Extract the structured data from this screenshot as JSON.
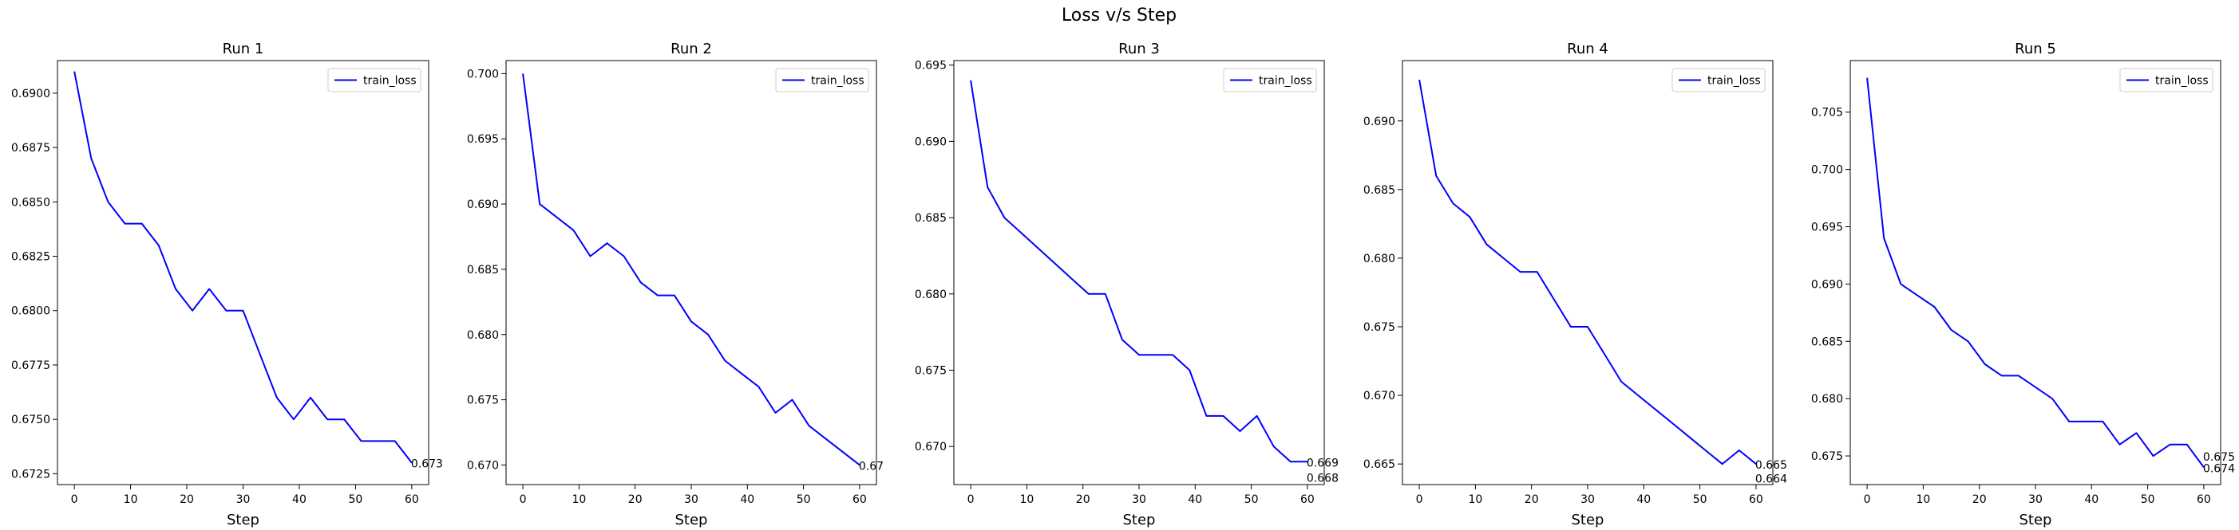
{
  "figure": {
    "title": "Loss v/s Step"
  },
  "chart_data": [
    {
      "type": "line",
      "title": "Run 1",
      "xlabel": "Step",
      "ylabel": "",
      "xlim": [
        -3,
        63
      ],
      "ylim": [
        0.672,
        0.6915
      ],
      "xticks": [
        0,
        10,
        20,
        30,
        40,
        50,
        60
      ],
      "yticks": [
        0.6725,
        0.675,
        0.6775,
        0.68,
        0.6825,
        0.685,
        0.6875,
        0.69
      ],
      "ytick_labels": [
        "0.6725",
        "0.6750",
        "0.6775",
        "0.6800",
        "0.6825",
        "0.6850",
        "0.6875",
        "0.6900"
      ],
      "legend": "top-right",
      "series": [
        {
          "name": "train_loss",
          "color": "#0000ff",
          "x": [
            0,
            3,
            6,
            9,
            12,
            15,
            18,
            21,
            24,
            27,
            30,
            33,
            36,
            39,
            42,
            45,
            48,
            51,
            54,
            57,
            60
          ],
          "y": [
            0.691,
            0.687,
            0.685,
            0.684,
            0.684,
            0.683,
            0.681,
            0.68,
            0.681,
            0.68,
            0.68,
            0.678,
            0.676,
            0.675,
            0.676,
            0.675,
            0.675,
            0.674,
            0.674,
            0.674,
            0.673
          ]
        }
      ],
      "annotations": [
        {
          "x": 60,
          "y": 0.673,
          "text": "0.673"
        }
      ]
    },
    {
      "type": "line",
      "title": "Run 2",
      "xlabel": "Step",
      "ylabel": "",
      "xlim": [
        -3,
        63
      ],
      "ylim": [
        0.6685,
        0.701
      ],
      "xticks": [
        0,
        10,
        20,
        30,
        40,
        50,
        60
      ],
      "yticks": [
        0.67,
        0.675,
        0.68,
        0.685,
        0.69,
        0.695,
        0.7
      ],
      "ytick_labels": [
        "0.670",
        "0.675",
        "0.680",
        "0.685",
        "0.690",
        "0.695",
        "0.700"
      ],
      "legend": "top-right",
      "series": [
        {
          "name": "train_loss",
          "color": "#0000ff",
          "x": [
            0,
            3,
            6,
            9,
            12,
            15,
            18,
            21,
            24,
            27,
            30,
            33,
            36,
            39,
            42,
            45,
            48,
            51,
            54,
            57,
            60
          ],
          "y": [
            0.7,
            0.69,
            0.689,
            0.688,
            0.686,
            0.687,
            0.686,
            0.684,
            0.683,
            0.683,
            0.681,
            0.68,
            0.678,
            0.677,
            0.676,
            0.674,
            0.675,
            0.673,
            0.672,
            0.671,
            0.67
          ]
        }
      ],
      "annotations": [
        {
          "x": 60,
          "y": 0.67,
          "text": "0.67"
        }
      ]
    },
    {
      "type": "line",
      "title": "Run 3",
      "xlabel": "Step",
      "ylabel": "",
      "xlim": [
        -3,
        63
      ],
      "ylim": [
        0.6675,
        0.6953
      ],
      "xticks": [
        0,
        10,
        20,
        30,
        40,
        50,
        60
      ],
      "yticks": [
        0.67,
        0.675,
        0.68,
        0.685,
        0.69,
        0.695
      ],
      "ytick_labels": [
        "0.670",
        "0.675",
        "0.680",
        "0.685",
        "0.690",
        "0.695"
      ],
      "legend": "top-right",
      "series": [
        {
          "name": "train_loss",
          "color": "#0000ff",
          "x": [
            0,
            3,
            6,
            9,
            12,
            15,
            18,
            21,
            24,
            27,
            30,
            33,
            36,
            39,
            42,
            45,
            48,
            51,
            54,
            57,
            60
          ],
          "y": [
            0.694,
            0.687,
            0.685,
            0.684,
            0.683,
            0.682,
            0.681,
            0.68,
            0.68,
            0.677,
            0.676,
            0.676,
            0.676,
            0.675,
            0.672,
            0.672,
            0.671,
            0.672,
            0.67,
            0.669,
            0.669
          ]
        }
      ],
      "annotations": [
        {
          "x": 60,
          "y": 0.669,
          "text": "0.669"
        },
        {
          "x": 60,
          "y": 0.668,
          "text": "0.668"
        }
      ]
    },
    {
      "type": "line",
      "title": "Run 4",
      "xlabel": "Step",
      "ylabel": "",
      "xlim": [
        -3,
        63
      ],
      "ylim": [
        0.6635,
        0.6944
      ],
      "xticks": [
        0,
        10,
        20,
        30,
        40,
        50,
        60
      ],
      "yticks": [
        0.665,
        0.67,
        0.675,
        0.68,
        0.685,
        0.69
      ],
      "ytick_labels": [
        "0.665",
        "0.670",
        "0.675",
        "0.680",
        "0.685",
        "0.690"
      ],
      "legend": "top-right",
      "series": [
        {
          "name": "train_loss",
          "color": "#0000ff",
          "x": [
            0,
            3,
            6,
            9,
            12,
            15,
            18,
            21,
            24,
            27,
            30,
            33,
            36,
            39,
            42,
            45,
            48,
            51,
            54,
            57,
            60
          ],
          "y": [
            0.693,
            0.686,
            0.684,
            0.683,
            0.681,
            0.68,
            0.679,
            0.679,
            0.677,
            0.675,
            0.675,
            0.673,
            0.671,
            0.67,
            0.669,
            0.668,
            0.667,
            0.666,
            0.665,
            0.666,
            0.665
          ]
        }
      ],
      "annotations": [
        {
          "x": 60,
          "y": 0.665,
          "text": "0.665"
        },
        {
          "x": 60,
          "y": 0.664,
          "text": "0.664"
        }
      ]
    },
    {
      "type": "line",
      "title": "Run 5",
      "xlabel": "Step",
      "ylabel": "",
      "xlim": [
        -3,
        63
      ],
      "ylim": [
        0.6725,
        0.7095
      ],
      "xticks": [
        0,
        10,
        20,
        30,
        40,
        50,
        60
      ],
      "yticks": [
        0.675,
        0.68,
        0.685,
        0.69,
        0.695,
        0.7,
        0.705
      ],
      "ytick_labels": [
        "0.675",
        "0.680",
        "0.685",
        "0.690",
        "0.695",
        "0.700",
        "0.705"
      ],
      "legend": "top-right",
      "series": [
        {
          "name": "train_loss",
          "color": "#0000ff",
          "x": [
            0,
            3,
            6,
            9,
            12,
            15,
            18,
            21,
            24,
            27,
            30,
            33,
            36,
            39,
            42,
            45,
            48,
            51,
            54,
            57,
            60
          ],
          "y": [
            0.708,
            0.694,
            0.69,
            0.689,
            0.688,
            0.686,
            0.685,
            0.683,
            0.682,
            0.682,
            0.681,
            0.68,
            0.678,
            0.678,
            0.678,
            0.676,
            0.677,
            0.675,
            0.676,
            0.676,
            0.674
          ]
        }
      ],
      "annotations": [
        {
          "x": 60,
          "y": 0.675,
          "text": "0.675"
        },
        {
          "x": 60,
          "y": 0.674,
          "text": "0.674"
        }
      ]
    }
  ]
}
